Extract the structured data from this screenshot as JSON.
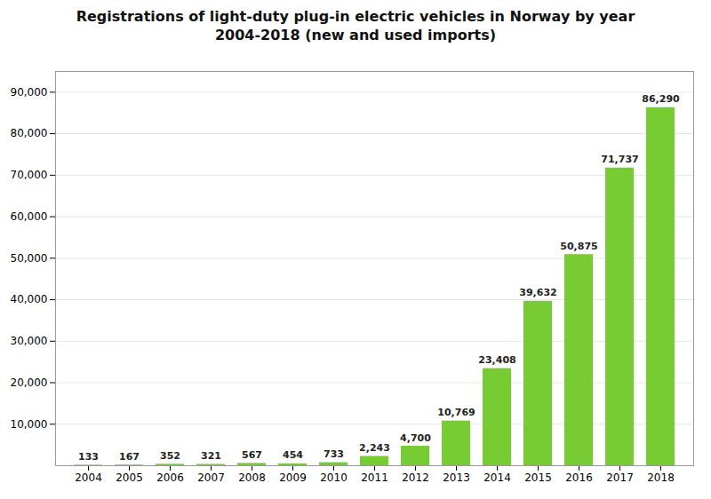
{
  "chart_data": {
    "type": "bar",
    "title": "Registrations of light-duty plug-in electric vehicles in Norway by year\n2004-2018 (new and used imports)",
    "categories": [
      "2004",
      "2005",
      "2006",
      "2007",
      "2008",
      "2009",
      "2010",
      "2011",
      "2012",
      "2013",
      "2014",
      "2015",
      "2016",
      "2017",
      "2018"
    ],
    "values": [
      133,
      167,
      352,
      321,
      567,
      454,
      733,
      2243,
      4700,
      10769,
      23408,
      39632,
      50875,
      71737,
      86290
    ],
    "value_labels": [
      "133",
      "167",
      "352",
      "321",
      "567",
      "454",
      "733",
      "2,243",
      "4,700",
      "10,769",
      "23,408",
      "39,632",
      "50,875",
      "71,737",
      "86,290"
    ],
    "data_labels": true,
    "color": "#77CC33",
    "ylim": [
      0,
      95000
    ],
    "yticks": [
      {
        "value": 10000,
        "label": "10,000"
      },
      {
        "value": 20000,
        "label": "20,000"
      },
      {
        "value": 30000,
        "label": "30,000"
      },
      {
        "value": 40000,
        "label": "40,000"
      },
      {
        "value": 50000,
        "label": "50,000"
      },
      {
        "value": 60000,
        "label": "60,000"
      },
      {
        "value": 70000,
        "label": "70,000"
      },
      {
        "value": 80000,
        "label": "80,000"
      },
      {
        "value": 90000,
        "label": "90,000"
      }
    ],
    "grid": true
  }
}
